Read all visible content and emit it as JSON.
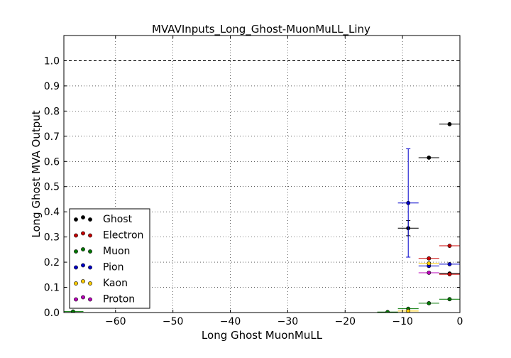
{
  "chart_data": {
    "type": "scatter",
    "title": "MVAVInputs_Long_Ghost-MuonMuLL_Liny",
    "xlabel": "Long Ghost MuonMuLL",
    "ylabel": "Long Ghost MVA Output",
    "xlim": [
      -69,
      0
    ],
    "ylim": [
      0,
      1.1
    ],
    "xticks": [
      -60,
      -50,
      -40,
      -30,
      -20,
      -10,
      0
    ],
    "xtick_labels": [
      "−60",
      "−50",
      "−40",
      "−30",
      "−20",
      "−10",
      "0"
    ],
    "yticks": [
      0.0,
      0.1,
      0.2,
      0.3,
      0.4,
      0.5,
      0.6,
      0.7,
      0.8,
      0.9,
      1.0
    ],
    "ytick_labels": [
      "0.0",
      "0.1",
      "0.2",
      "0.3",
      "0.4",
      "0.5",
      "0.6",
      "0.7",
      "0.8",
      "0.9",
      "1.0"
    ],
    "grid": true,
    "reference_line": 1.0,
    "legend_position": "lower-left",
    "series": [
      {
        "name": "Ghost",
        "color": "#000000",
        "points": [
          {
            "x": -1.8,
            "y": 0.748,
            "xerr": 1.8,
            "yerr": 0.004
          },
          {
            "x": -5.4,
            "y": 0.615,
            "xerr": 1.8,
            "yerr": 0.006
          },
          {
            "x": -9.0,
            "y": 0.335,
            "xerr": 1.8,
            "yerr": 0.03
          },
          {
            "x": -1.8,
            "y": 0.155,
            "xerr": 1.8,
            "yerr": 0.005
          }
        ]
      },
      {
        "name": "Electron",
        "color": "#cc0000",
        "points": [
          {
            "x": -1.8,
            "y": 0.265,
            "xerr": 1.8,
            "yerr": 0.005
          },
          {
            "x": -5.4,
            "y": 0.215,
            "xerr": 1.8,
            "yerr": 0.006
          },
          {
            "x": -1.8,
            "y": 0.152,
            "xerr": 1.8,
            "yerr": 0.004
          }
        ]
      },
      {
        "name": "Muon",
        "color": "#007700",
        "points": [
          {
            "x": -1.8,
            "y": 0.053,
            "xerr": 1.8,
            "yerr": 0.002
          },
          {
            "x": -5.4,
            "y": 0.037,
            "xerr": 1.8,
            "yerr": 0.002
          },
          {
            "x": -9.0,
            "y": 0.015,
            "xerr": 1.8,
            "yerr": 0.002
          },
          {
            "x": -12.6,
            "y": 0.002,
            "xerr": 1.8,
            "yerr": 0.001
          },
          {
            "x": -67.4,
            "y": 0.004,
            "xerr": 1.8,
            "yerr": 0.001
          }
        ]
      },
      {
        "name": "Pion",
        "color": "#0000cc",
        "points": [
          {
            "x": -1.8,
            "y": 0.192,
            "xerr": 1.8,
            "yerr": 0.004
          },
          {
            "x": -5.4,
            "y": 0.185,
            "xerr": 1.8,
            "yerr": 0.006
          },
          {
            "x": -9.0,
            "y": 0.435,
            "xerr": 1.8,
            "yerr": 0.215
          }
        ]
      },
      {
        "name": "Kaon",
        "color": "#ffcc00",
        "points": [
          {
            "x": -5.4,
            "y": 0.195,
            "xerr": 1.8,
            "yerr": 0.006
          },
          {
            "x": -9.0,
            "y": 0.006,
            "xerr": 1.8,
            "yerr": 0.002
          }
        ]
      },
      {
        "name": "Proton",
        "color": "#bb00bb",
        "points": [
          {
            "x": -5.4,
            "y": 0.158,
            "xerr": 1.8,
            "yerr": 0.006
          }
        ]
      }
    ]
  }
}
